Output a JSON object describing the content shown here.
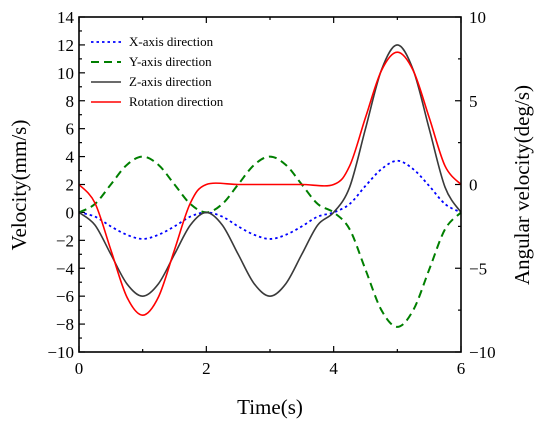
{
  "chart_data": {
    "type": "line",
    "xlabel": "Time(s)",
    "ylabel": "Velocity(mm/s)",
    "y2label": "Angular velocity(deg/s)",
    "xlim": [
      0,
      6
    ],
    "ylim": [
      -10,
      14
    ],
    "y2lim": [
      -10,
      10
    ],
    "x_ticks": [
      "0",
      "2",
      "4",
      "6"
    ],
    "y_ticks": [
      "−10",
      "−8",
      "−6",
      "−4",
      "−2",
      "0",
      "2",
      "4",
      "6",
      "8",
      "10",
      "12",
      "14"
    ],
    "y2_ticks": [
      "−10",
      "−5",
      "0",
      "5",
      "10"
    ],
    "legend_position": "top-left",
    "series": [
      {
        "name": "X-axis direction",
        "axis": "left",
        "color": "#0000ff",
        "style": "dotted",
        "x": [
          0,
          0.25,
          0.5,
          0.75,
          1,
          1.25,
          1.5,
          1.75,
          2,
          2.25,
          2.5,
          2.75,
          3,
          3.25,
          3.5,
          3.75,
          4,
          4.25,
          4.5,
          4.75,
          5,
          5.25,
          5.5,
          5.75,
          6
        ],
        "values": [
          0,
          -0.3,
          -1.0,
          -1.6,
          -1.9,
          -1.6,
          -1.0,
          -0.3,
          0,
          -0.3,
          -1.0,
          -1.6,
          -1.9,
          -1.6,
          -1.0,
          -0.3,
          0,
          0.6,
          1.9,
          3.1,
          3.7,
          3.1,
          1.9,
          0.6,
          0
        ]
      },
      {
        "name": "Y-axis direction",
        "axis": "left",
        "color": "#007f00",
        "style": "dashed",
        "x": [
          0,
          0.25,
          0.5,
          0.75,
          1,
          1.25,
          1.5,
          1.75,
          2,
          2.25,
          2.5,
          2.75,
          3,
          3.25,
          3.5,
          3.75,
          4,
          4.25,
          4.5,
          4.75,
          5,
          5.25,
          5.5,
          5.75,
          6
        ],
        "values": [
          0,
          0.6,
          2.0,
          3.4,
          4.0,
          3.4,
          2.0,
          0.6,
          0,
          0.6,
          2.0,
          3.4,
          4.0,
          3.4,
          2.0,
          0.6,
          0,
          -1.2,
          -4.1,
          -7.0,
          -8.2,
          -7.0,
          -4.1,
          -1.2,
          0
        ]
      },
      {
        "name": "Z-axis direction",
        "axis": "left",
        "color": "#3a3a3a",
        "style": "solid",
        "x": [
          0,
          0.25,
          0.5,
          0.75,
          1,
          1.25,
          1.5,
          1.75,
          2,
          2.25,
          2.5,
          2.75,
          3,
          3.25,
          3.5,
          3.75,
          4,
          4.25,
          4.5,
          4.75,
          5,
          5.25,
          5.5,
          5.75,
          6
        ],
        "values": [
          0,
          -0.9,
          -3.0,
          -5.1,
          -6.0,
          -5.1,
          -3.0,
          -0.9,
          0,
          -0.9,
          -3.0,
          -5.1,
          -6.0,
          -5.1,
          -3.0,
          -0.9,
          0,
          1.8,
          6.0,
          10.2,
          12.0,
          10.2,
          6.0,
          1.8,
          0
        ]
      },
      {
        "name": "Rotation direction",
        "axis": "right",
        "color": "#ff0000",
        "style": "solid",
        "x": [
          0,
          0.25,
          0.5,
          0.75,
          1,
          1.25,
          1.5,
          1.75,
          2,
          2.5,
          3,
          3.5,
          4,
          4.25,
          4.5,
          4.75,
          5,
          5.25,
          5.5,
          5.75,
          6
        ],
        "values": [
          0,
          -1.1,
          -3.9,
          -6.7,
          -7.8,
          -6.7,
          -3.9,
          -1.1,
          0,
          0,
          0,
          0,
          0,
          1.1,
          4.0,
          6.8,
          7.9,
          6.8,
          4.0,
          1.1,
          0
        ]
      }
    ]
  }
}
